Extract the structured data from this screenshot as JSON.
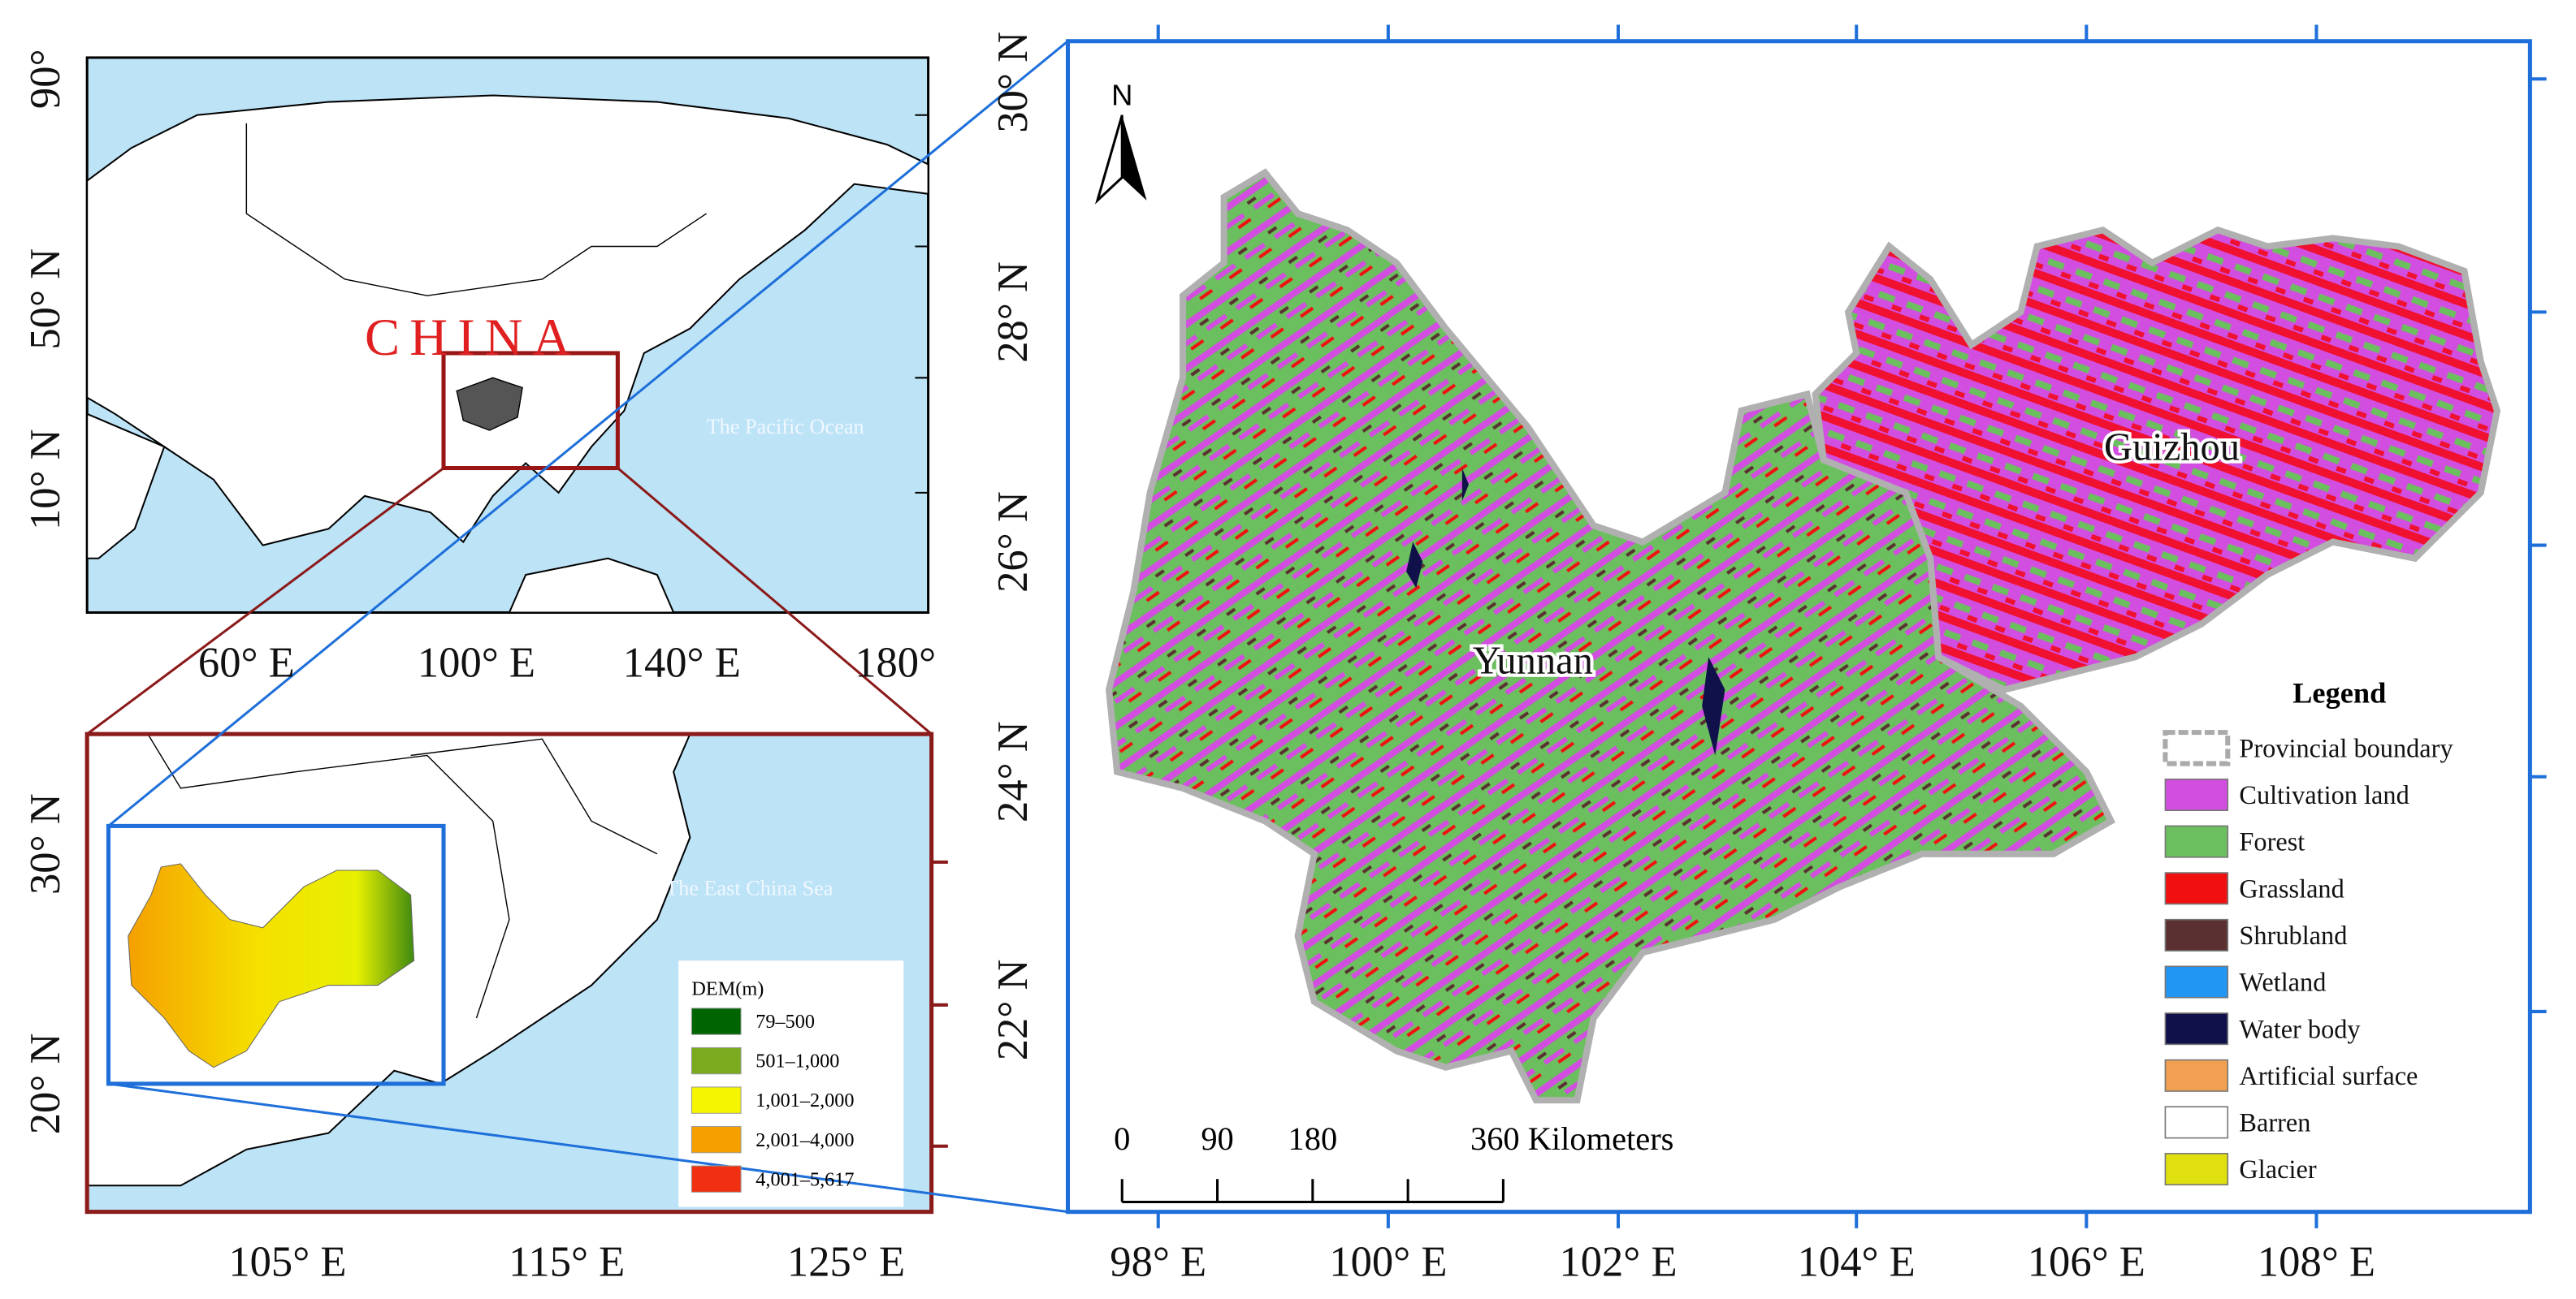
{
  "overview_map": {
    "xticks": [
      "60° E",
      "100° E",
      "140° E",
      "180°"
    ],
    "yticks": [
      "90°",
      "50° N",
      "10° N"
    ],
    "country_label": "CHINA",
    "ocean_label": "The Pacific Ocean"
  },
  "inset_map": {
    "xticks": [
      "105° E",
      "115° E",
      "125° E"
    ],
    "yticks": [
      "30° N",
      "20° N"
    ],
    "sea_label": "The East China Sea",
    "legend": {
      "title": "DEM(m)",
      "items": [
        {
          "label": "79–500",
          "color": "#006400"
        },
        {
          "label": "501–1,000",
          "color": "#7aab1e"
        },
        {
          "label": "1,001–2,000",
          "color": "#f5f500"
        },
        {
          "label": "2,001–4,000",
          "color": "#f5a000"
        },
        {
          "label": "4,001–5,617",
          "color": "#f03010"
        }
      ]
    }
  },
  "main_map": {
    "xticks": [
      "98° E",
      "100° E",
      "102° E",
      "104° E",
      "106° E",
      "108° E"
    ],
    "yticks": [
      "30° N",
      "28° N",
      "26° N",
      "24° N",
      "22° N"
    ],
    "north": "N",
    "province_labels": [
      "Yunnan",
      "Guizhou"
    ],
    "scale_bar": {
      "ticks": [
        "0",
        "90",
        "180"
      ],
      "end_label": "360 Kilometers"
    },
    "legend": {
      "title": "Legend",
      "items": [
        {
          "label": "Provincial boundary",
          "color": "#ffffff"
        },
        {
          "label": "Cultivation land",
          "color": "#d24ee0"
        },
        {
          "label": "Forest",
          "color": "#6cbf5e"
        },
        {
          "label": "Grassland",
          "color": "#f01010"
        },
        {
          "label": "Shrubland",
          "color": "#5a3030"
        },
        {
          "label": "Wetland",
          "color": "#2196f3"
        },
        {
          "label": "Water body",
          "color": "#10104a"
        },
        {
          "label": "Artificial surface",
          "color": "#f0a050"
        },
        {
          "label": "Barren",
          "color": "#ffffff"
        },
        {
          "label": "Glacier",
          "color": "#e0e010"
        }
      ]
    }
  }
}
